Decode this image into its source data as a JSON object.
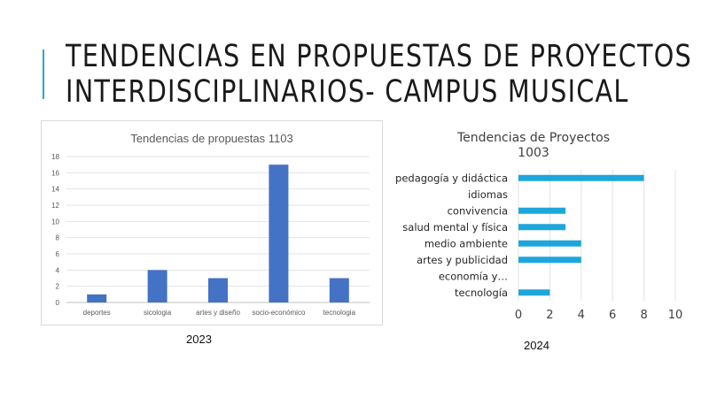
{
  "slide": {
    "title_lines": [
      "TENDENCIAS EN PROPUESTAS DE PROYECTOS",
      "INTERDISCIPLINARIOS- CAMPUS MUSICAL"
    ],
    "accent_color": "#2ea8c8",
    "year_left": "2023",
    "year_right": "2024"
  },
  "chart_data": [
    {
      "type": "bar",
      "title": "Tendencias de propuestas 1103",
      "categories": [
        "deportes",
        "sicologia",
        "artes y diseño",
        "socio-económico",
        "tecnologia"
      ],
      "values": [
        1,
        4,
        3,
        17,
        3
      ],
      "ylim": [
        0,
        18
      ],
      "yticks": [
        0,
        2,
        4,
        6,
        8,
        10,
        12,
        14,
        16,
        18
      ],
      "grid": true,
      "color": "#4472c4"
    },
    {
      "type": "bar",
      "orientation": "horizontal",
      "title_lines": [
        "Tendencias de Proyectos",
        "1003"
      ],
      "categories": [
        "pedagogía y didáctica",
        "idiomas",
        "convivencia",
        "salud mental y física",
        "medio ambiente",
        "artes y publicidad",
        "economía y…",
        "tecnología"
      ],
      "values": [
        8,
        0,
        3,
        3,
        4,
        4,
        0,
        2
      ],
      "xlim": [
        0,
        10
      ],
      "xticks": [
        0,
        2,
        4,
        6,
        8,
        10
      ],
      "grid": true,
      "color": "#1ea6dc"
    }
  ]
}
